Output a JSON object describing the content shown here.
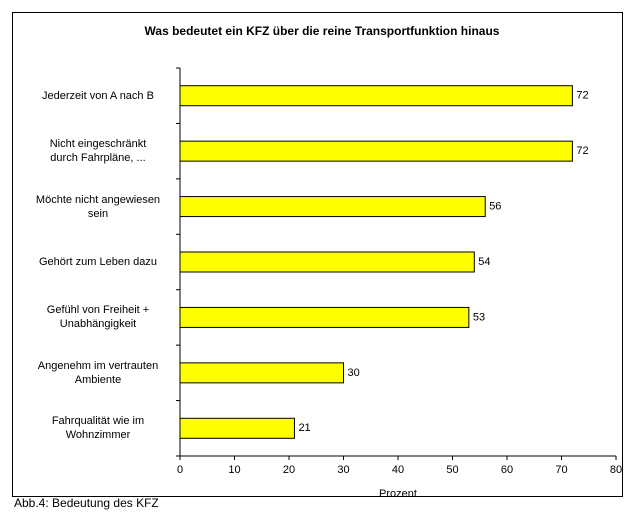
{
  "chart_data": {
    "type": "bar",
    "orientation": "horizontal",
    "title": "Was bedeutet ein KFZ über die reine Transportfunktion hinaus",
    "categories": [
      "Jederzeit von A nach B",
      "Nicht eingeschränkt\ndurch Fahrpläne, ...",
      "Möchte nicht angewiesen\nsein",
      "Gehört zum Leben dazu",
      "Gefühl von Freiheit +\nUnabhängigkeit",
      "Angenehm im vertrauten\nAmbiente",
      "Fahrqualität wie im\nWohnzimmer"
    ],
    "values": [
      72,
      72,
      56,
      54,
      53,
      30,
      21
    ],
    "color": "#ffff00",
    "xlim": [
      0,
      80
    ],
    "xticks": [
      0,
      10,
      20,
      30,
      40,
      50,
      60,
      70,
      80
    ],
    "xlabel": "Prozent",
    "caption": "Abb.4: Bedeutung des KFZ"
  }
}
